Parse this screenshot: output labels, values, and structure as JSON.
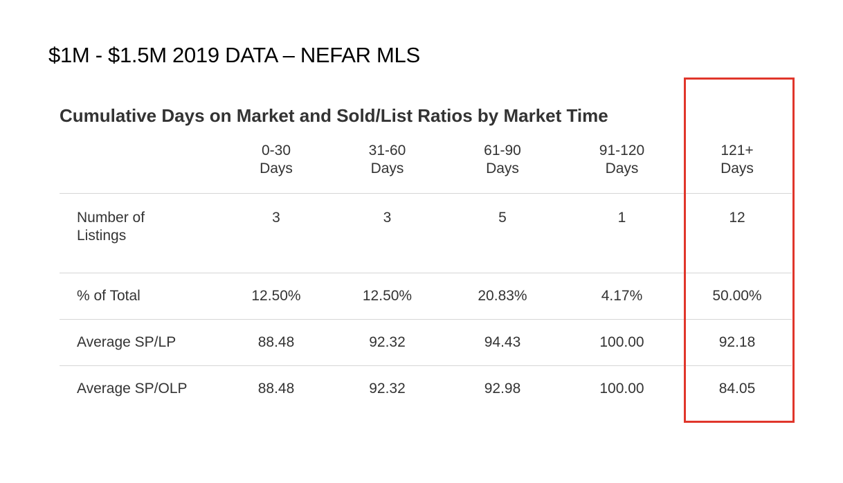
{
  "slide": {
    "title": "$1M - $1.5M 2019 DATA – NEFAR MLS"
  },
  "table": {
    "heading": "Cumulative Days on Market and Sold/List Ratios by Market Time",
    "columns": [
      {
        "line1": "0-30",
        "line2": "Days"
      },
      {
        "line1": "31-60",
        "line2": "Days"
      },
      {
        "line1": "61-90",
        "line2": "Days"
      },
      {
        "line1": "91-120",
        "line2": "Days"
      },
      {
        "line1": "121+",
        "line2": "Days"
      }
    ],
    "rows": {
      "listings": {
        "label_line1": "Number of",
        "label_line2": "Listings",
        "values": [
          "3",
          "3",
          "5",
          "1",
          "12"
        ]
      },
      "pct_total": {
        "label": "% of Total",
        "values": [
          "12.50%",
          "12.50%",
          "20.83%",
          "4.17%",
          "50.00%"
        ]
      },
      "avg_sp_lp": {
        "label": "Average SP/LP",
        "values": [
          "88.48",
          "92.32",
          "94.43",
          "100.00",
          "92.18"
        ]
      },
      "avg_sp_olp": {
        "label": "Average SP/OLP",
        "values": [
          "88.48",
          "92.32",
          "92.98",
          "100.00",
          "84.05"
        ]
      }
    }
  },
  "highlight": {
    "column": "121+ Days",
    "color": "#e0362b"
  },
  "colors": {
    "text": "#333333",
    "rule": "#d5d5d5",
    "title": "#000000"
  }
}
